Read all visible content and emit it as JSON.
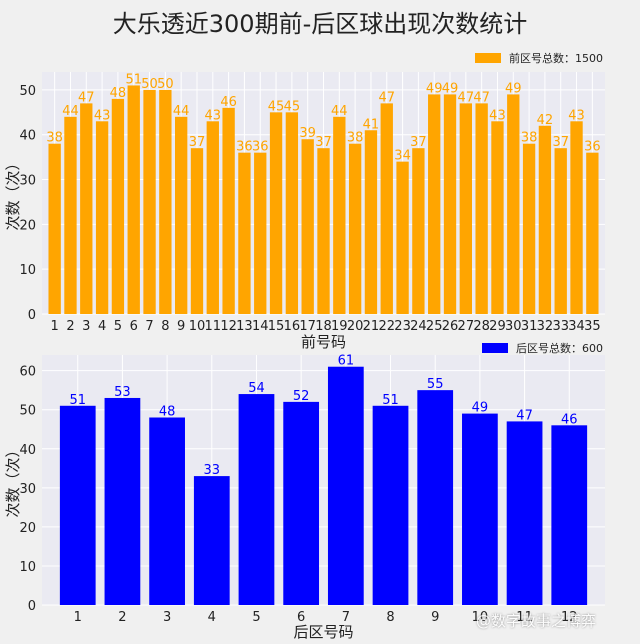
{
  "title": "大乐透近300期前-后区球出现次数统计",
  "watermark": "@数字故事之博弈",
  "colors": {
    "front": "#ffa500",
    "back": "#0000ff",
    "plot_bg": "#eaeaf2",
    "grid": "#ffffff"
  },
  "chart_data": [
    {
      "type": "bar",
      "xlabel": "前号码",
      "ylabel": "次数（次）",
      "ylim": [
        0,
        54
      ],
      "yticks": [
        0,
        10,
        20,
        30,
        40,
        50
      ],
      "grid": true,
      "legend_position": "top-right",
      "categories": [
        "1",
        "2",
        "3",
        "4",
        "5",
        "6",
        "7",
        "8",
        "9",
        "10",
        "11",
        "12",
        "13",
        "14",
        "15",
        "16",
        "17",
        "18",
        "19",
        "20",
        "21",
        "22",
        "23",
        "24",
        "25",
        "26",
        "27",
        "28",
        "29",
        "30",
        "31",
        "32",
        "33",
        "34",
        "35"
      ],
      "series": [
        {
          "name": "前区号总数：1500",
          "values": [
            38,
            44,
            47,
            43,
            48,
            51,
            50,
            50,
            44,
            37,
            43,
            46,
            36,
            36,
            45,
            45,
            39,
            37,
            44,
            38,
            41,
            47,
            34,
            37,
            49,
            49,
            47,
            47,
            43,
            49,
            38,
            42,
            37,
            43,
            36
          ]
        }
      ]
    },
    {
      "type": "bar",
      "xlabel": "后区号码",
      "ylabel": "次数（次）",
      "ylim": [
        0,
        64
      ],
      "yticks": [
        0,
        10,
        20,
        30,
        40,
        50,
        60
      ],
      "grid": true,
      "legend_position": "top-right",
      "categories": [
        "1",
        "2",
        "3",
        "4",
        "5",
        "6",
        "7",
        "8",
        "9",
        "10",
        "11",
        "12"
      ],
      "series": [
        {
          "name": "后区号总数：600",
          "values": [
            51,
            53,
            48,
            33,
            54,
            52,
            61,
            51,
            55,
            49,
            47,
            46
          ]
        }
      ]
    }
  ]
}
